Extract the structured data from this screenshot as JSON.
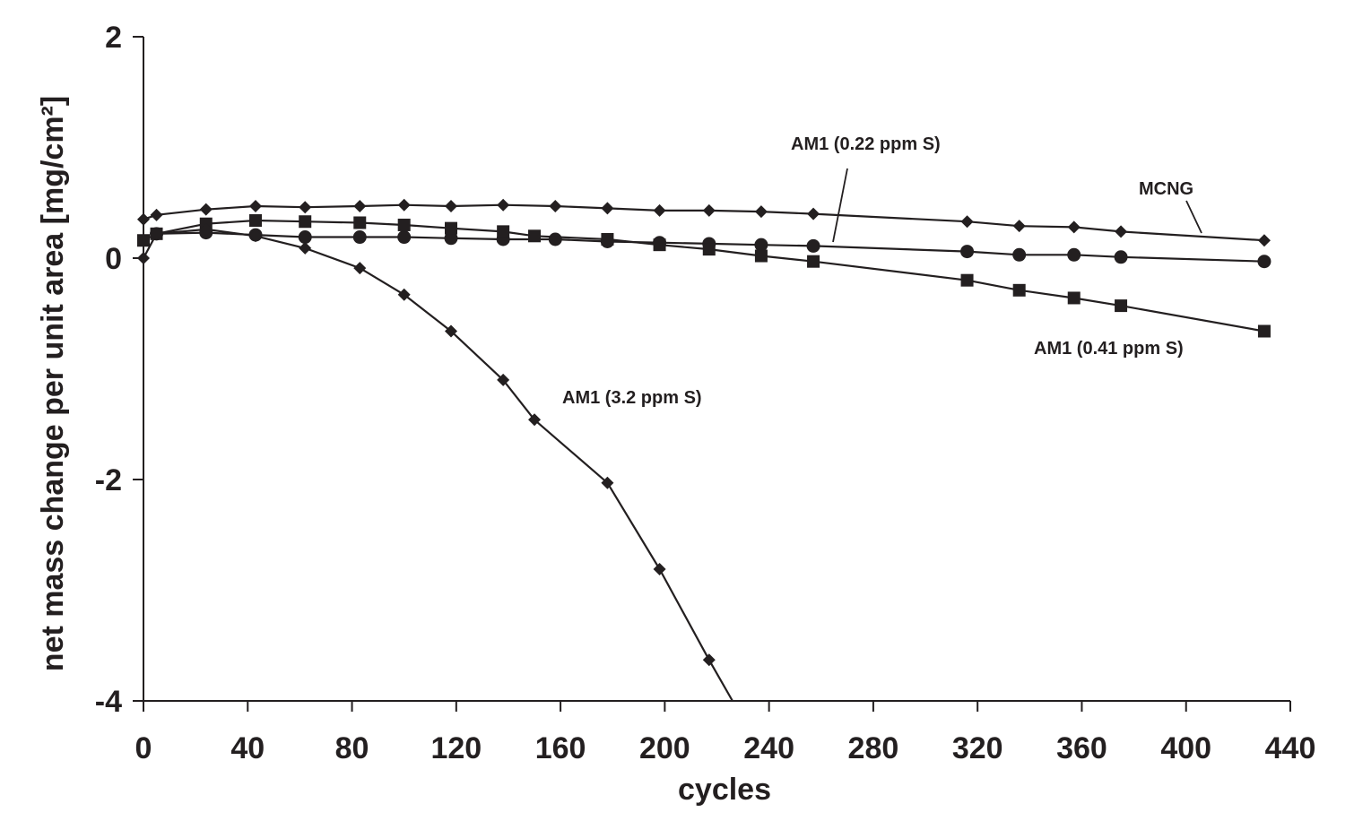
{
  "chart_data": {
    "type": "line",
    "xlabel": "cycles",
    "ylabel": "net mass change per unit area [mg/cm²]",
    "xlim": [
      0,
      440
    ],
    "ylim": [
      -4,
      2
    ],
    "x_ticks": [
      0,
      40,
      80,
      120,
      160,
      200,
      240,
      280,
      320,
      360,
      400,
      440
    ],
    "y_ticks": [
      -4,
      -2,
      0,
      2
    ],
    "grid": false,
    "legend": "none",
    "colors": {
      "line": "#231f20",
      "axis": "#231f20"
    },
    "series": [
      {
        "name": "MCNG",
        "marker": "diamond",
        "x": [
          0,
          5,
          24,
          43,
          62,
          83,
          100,
          118,
          138,
          158,
          178,
          198,
          217,
          237,
          257,
          316,
          336,
          357,
          375,
          430
        ],
        "y": [
          0.35,
          0.39,
          0.44,
          0.47,
          0.46,
          0.47,
          0.48,
          0.47,
          0.48,
          0.47,
          0.45,
          0.43,
          0.43,
          0.42,
          0.4,
          0.33,
          0.29,
          0.28,
          0.24,
          0.16
        ]
      },
      {
        "name": "AM1 (0.22 ppm S)",
        "marker": "circle",
        "x": [
          5,
          24,
          43,
          62,
          83,
          100,
          118,
          138,
          158,
          178,
          198,
          217,
          237,
          257,
          316,
          336,
          357,
          375,
          430
        ],
        "y": [
          0.22,
          0.23,
          0.21,
          0.19,
          0.19,
          0.19,
          0.18,
          0.17,
          0.17,
          0.15,
          0.14,
          0.13,
          0.12,
          0.11,
          0.06,
          0.03,
          0.03,
          0.01,
          -0.03
        ]
      },
      {
        "name": "AM1 (0.41 ppm S)",
        "marker": "square",
        "x": [
          0,
          5,
          24,
          43,
          62,
          83,
          100,
          118,
          138,
          150,
          178,
          198,
          217,
          237,
          257,
          316,
          336,
          357,
          375,
          430
        ],
        "y": [
          0.16,
          0.22,
          0.31,
          0.34,
          0.33,
          0.32,
          0.3,
          0.27,
          0.24,
          0.2,
          0.17,
          0.12,
          0.08,
          0.02,
          -0.03,
          -0.2,
          -0.29,
          -0.36,
          -0.43,
          -0.66
        ]
      },
      {
        "name": "AM1 (3.2 ppm S)",
        "marker": "diamond",
        "x": [
          0,
          5,
          24,
          43,
          62,
          83,
          100,
          118,
          138,
          150,
          178,
          198,
          217,
          226
        ],
        "y": [
          0.0,
          0.22,
          0.26,
          0.2,
          0.09,
          -0.09,
          -0.33,
          -0.66,
          -1.1,
          -1.46,
          -2.03,
          -2.81,
          -3.63,
          -4.0
        ],
        "marker_count": 13
      }
    ]
  }
}
